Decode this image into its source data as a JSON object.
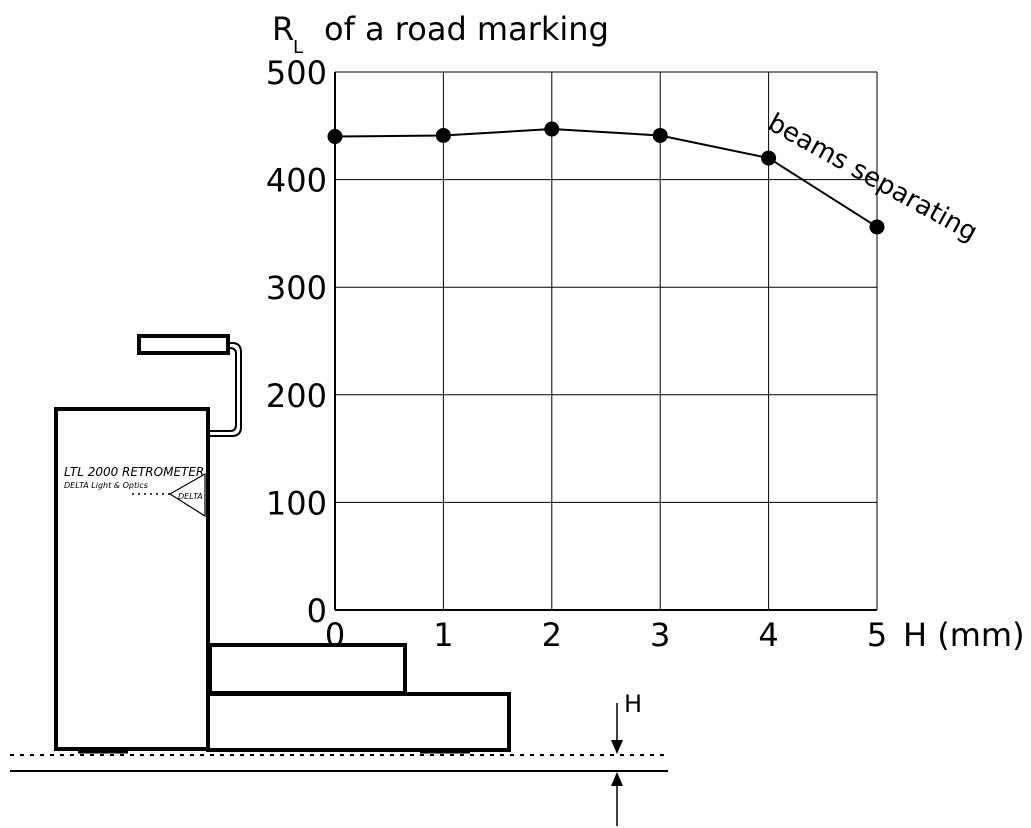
{
  "chart_data": {
    "type": "line",
    "title_main": "R",
    "title_sub": "L",
    "title_rest": "of a road marking",
    "xlabel": "H (mm)",
    "x": [
      0,
      1,
      2,
      3,
      4,
      5
    ],
    "xticks": [
      "0",
      "1",
      "2",
      "3",
      "4",
      "5"
    ],
    "yticks": [
      "0",
      "100",
      "200",
      "300",
      "400",
      "500"
    ],
    "xlim": [
      0,
      5
    ],
    "ylim": [
      0,
      500
    ],
    "grid": true,
    "series": [
      {
        "values": [
          440,
          441,
          447,
          441,
          420,
          356
        ]
      }
    ],
    "annotation": "beams separating"
  },
  "device": {
    "model": "LTL 2000 RETROMETER",
    "maker": "DELTA Light & Optics",
    "logo_text": "DELTA"
  },
  "gap_label": "H"
}
